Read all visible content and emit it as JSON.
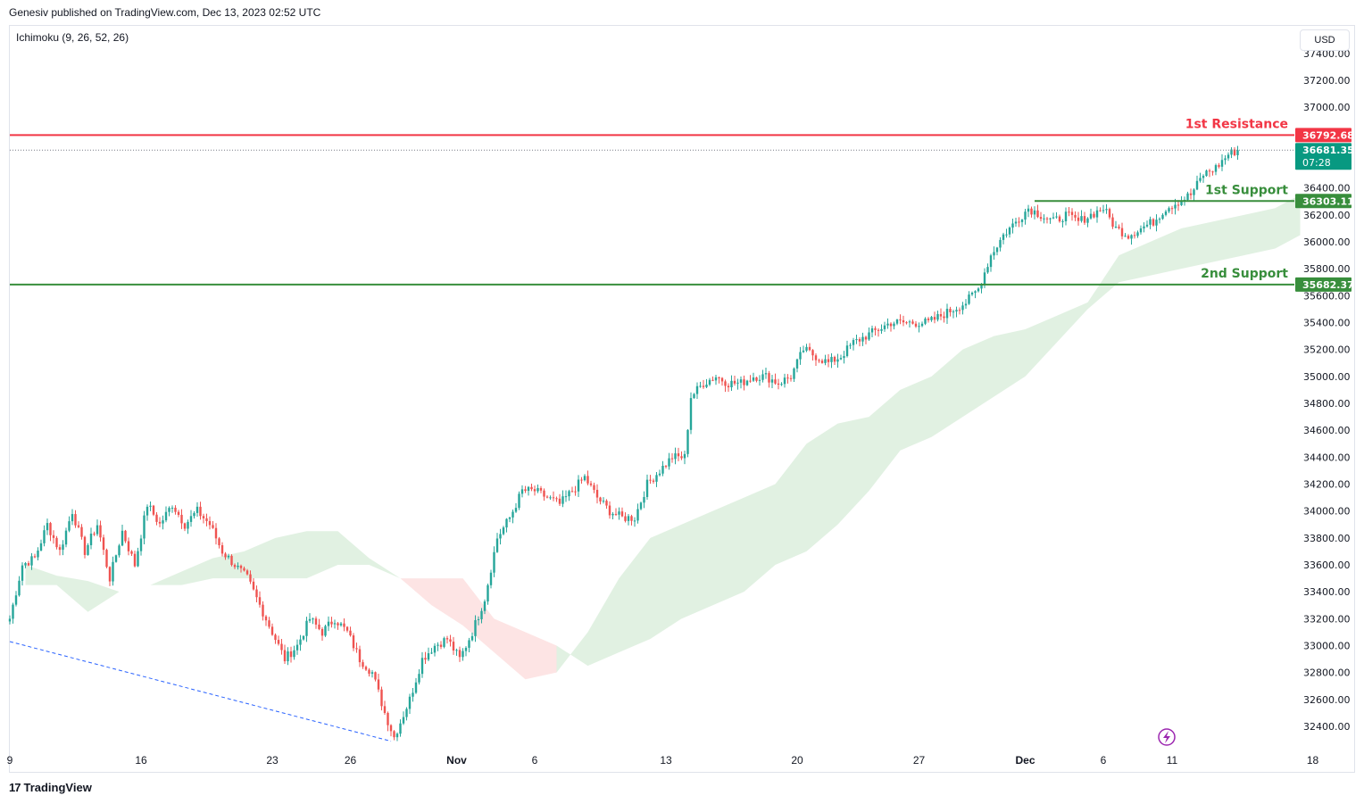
{
  "header": {
    "publisher": "Genesiv published on TradingView.com, Dec 13, 2023 02:52 UTC",
    "indicator": "Ichimoku (9, 26, 52, 26)",
    "currency": "USD"
  },
  "footer": {
    "brand": "TradingView",
    "brand_mark": "17"
  },
  "colors": {
    "up": "#26a69a",
    "down": "#ef5350",
    "resistance": "#f23645",
    "support": "#388e3c",
    "cloud_bull": "#e1f1e2",
    "cloud_bear": "#fde4e4",
    "trend": "#2962ff",
    "current": "#089981"
  },
  "chart_data": {
    "type": "candlestick",
    "title": "",
    "ylim": [
      32200,
      37500
    ],
    "y_ticks": [
      32400,
      32600,
      32800,
      33000,
      33200,
      33400,
      33600,
      33800,
      34000,
      34200,
      34400,
      34600,
      34800,
      35000,
      35200,
      35400,
      35600,
      35800,
      36000,
      36200,
      36400,
      36600,
      36800,
      37000,
      37200,
      37400
    ],
    "y_tick_labels": [
      "32400.00",
      "32600.00",
      "32800.00",
      "33000.00",
      "33200.00",
      "33400.00",
      "33600.00",
      "33800.00",
      "34000.00",
      "34200.00",
      "34400.00",
      "34600.00",
      "34800.00",
      "35000.00",
      "35200.00",
      "35400.00",
      "35600.00",
      "35800.00",
      "36000.00",
      "36200.00",
      "36400.00",
      "36600.00",
      "36800.00",
      "37000.00",
      "37200.00",
      "37400.00"
    ],
    "x_ticks": [
      {
        "label": "9",
        "bar": 0
      },
      {
        "label": "16",
        "bar": 42
      },
      {
        "label": "23",
        "bar": 84
      },
      {
        "label": "26",
        "bar": 109
      },
      {
        "label": "Nov",
        "bar": 143
      },
      {
        "label": "6",
        "bar": 168
      },
      {
        "label": "13",
        "bar": 210
      },
      {
        "label": "20",
        "bar": 252
      },
      {
        "label": "27",
        "bar": 291
      },
      {
        "label": "Dec",
        "bar": 325
      },
      {
        "label": "6",
        "bar": 350
      },
      {
        "label": "11",
        "bar": 372
      },
      {
        "label": "18",
        "bar": 417
      }
    ],
    "x_tick_bold": [
      "Nov",
      "Dec"
    ],
    "close_anchors": [
      [
        0,
        33200
      ],
      [
        4,
        33600
      ],
      [
        8,
        33650
      ],
      [
        12,
        33900
      ],
      [
        16,
        33700
      ],
      [
        20,
        34000
      ],
      [
        24,
        33700
      ],
      [
        28,
        33900
      ],
      [
        32,
        33500
      ],
      [
        36,
        33850
      ],
      [
        40,
        33600
      ],
      [
        44,
        34050
      ],
      [
        48,
        33900
      ],
      [
        52,
        34050
      ],
      [
        56,
        33900
      ],
      [
        60,
        34000
      ],
      [
        64,
        33900
      ],
      [
        68,
        33700
      ],
      [
        72,
        33600
      ],
      [
        76,
        33500
      ],
      [
        80,
        33300
      ],
      [
        84,
        33100
      ],
      [
        88,
        32900
      ],
      [
        92,
        33000
      ],
      [
        96,
        33200
      ],
      [
        100,
        33100
      ],
      [
        104,
        33200
      ],
      [
        108,
        33100
      ],
      [
        112,
        32900
      ],
      [
        116,
        32800
      ],
      [
        120,
        32500
      ],
      [
        123,
        32320
      ],
      [
        128,
        32600
      ],
      [
        132,
        32900
      ],
      [
        136,
        33000
      ],
      [
        140,
        33050
      ],
      [
        144,
        32900
      ],
      [
        148,
        33100
      ],
      [
        152,
        33350
      ],
      [
        156,
        33800
      ],
      [
        160,
        33950
      ],
      [
        164,
        34150
      ],
      [
        168,
        34150
      ],
      [
        172,
        34100
      ],
      [
        176,
        34050
      ],
      [
        180,
        34150
      ],
      [
        184,
        34250
      ],
      [
        188,
        34100
      ],
      [
        192,
        34000
      ],
      [
        196,
        33950
      ],
      [
        200,
        33950
      ],
      [
        204,
        34200
      ],
      [
        208,
        34300
      ],
      [
        212,
        34400
      ],
      [
        216,
        34400
      ],
      [
        218,
        34850
      ],
      [
        222,
        34950
      ],
      [
        226,
        35000
      ],
      [
        230,
        34950
      ],
      [
        234,
        34950
      ],
      [
        238,
        35000
      ],
      [
        242,
        35000
      ],
      [
        246,
        34950
      ],
      [
        250,
        35000
      ],
      [
        254,
        35200
      ],
      [
        258,
        35150
      ],
      [
        262,
        35100
      ],
      [
        266,
        35150
      ],
      [
        270,
        35250
      ],
      [
        274,
        35300
      ],
      [
        278,
        35350
      ],
      [
        282,
        35400
      ],
      [
        286,
        35400
      ],
      [
        290,
        35400
      ],
      [
        294,
        35400
      ],
      [
        298,
        35450
      ],
      [
        302,
        35500
      ],
      [
        306,
        35550
      ],
      [
        310,
        35650
      ],
      [
        314,
        35900
      ],
      [
        318,
        36050
      ],
      [
        322,
        36150
      ],
      [
        326,
        36250
      ],
      [
        330,
        36200
      ],
      [
        334,
        36150
      ],
      [
        338,
        36200
      ],
      [
        342,
        36150
      ],
      [
        346,
        36200
      ],
      [
        350,
        36250
      ],
      [
        354,
        36100
      ],
      [
        358,
        36050
      ],
      [
        362,
        36100
      ],
      [
        366,
        36150
      ],
      [
        370,
        36250
      ],
      [
        374,
        36300
      ],
      [
        378,
        36350
      ],
      [
        382,
        36500
      ],
      [
        386,
        36550
      ],
      [
        390,
        36650
      ],
      [
        393,
        36681.35
      ]
    ],
    "ichimoku_cloud": [
      {
        "bar": 5,
        "a": 33600,
        "b": 33450
      },
      {
        "bar": 15,
        "a": 33520,
        "b": 33450
      },
      {
        "bar": 25,
        "a": 33480,
        "b": 33250
      },
      {
        "bar": 35,
        "a": 33400,
        "b": 33400
      },
      {
        "bar": 45,
        "a": 33450,
        "b": 33450
      },
      {
        "bar": 55,
        "a": 33550,
        "b": 33450
      },
      {
        "bar": 65,
        "a": 33650,
        "b": 33500
      },
      {
        "bar": 75,
        "a": 33700,
        "b": 33500
      },
      {
        "bar": 85,
        "a": 33800,
        "b": 33500
      },
      {
        "bar": 95,
        "a": 33850,
        "b": 33500
      },
      {
        "bar": 105,
        "a": 33850,
        "b": 33600
      },
      {
        "bar": 115,
        "a": 33650,
        "b": 33600
      },
      {
        "bar": 125,
        "a": 33500,
        "b": 33500
      },
      {
        "bar": 135,
        "a": 33300,
        "b": 33500
      },
      {
        "bar": 145,
        "a": 33150,
        "b": 33500
      },
      {
        "bar": 155,
        "a": 32950,
        "b": 33200
      },
      {
        "bar": 165,
        "a": 32750,
        "b": 33100
      },
      {
        "bar": 175,
        "a": 32800,
        "b": 33000
      },
      {
        "bar": 185,
        "a": 33100,
        "b": 32850
      },
      {
        "bar": 195,
        "a": 33500,
        "b": 32950
      },
      {
        "bar": 205,
        "a": 33800,
        "b": 33050
      },
      {
        "bar": 215,
        "a": 33900,
        "b": 33200
      },
      {
        "bar": 225,
        "a": 34000,
        "b": 33300
      },
      {
        "bar": 235,
        "a": 34100,
        "b": 33400
      },
      {
        "bar": 245,
        "a": 34200,
        "b": 33600
      },
      {
        "bar": 255,
        "a": 34500,
        "b": 33700
      },
      {
        "bar": 265,
        "a": 34650,
        "b": 33900
      },
      {
        "bar": 275,
        "a": 34700,
        "b": 34150
      },
      {
        "bar": 285,
        "a": 34900,
        "b": 34450
      },
      {
        "bar": 295,
        "a": 35000,
        "b": 34550
      },
      {
        "bar": 305,
        "a": 35200,
        "b": 34700
      },
      {
        "bar": 315,
        "a": 35300,
        "b": 34850
      },
      {
        "bar": 325,
        "a": 35350,
        "b": 35000
      },
      {
        "bar": 335,
        "a": 35450,
        "b": 35250
      },
      {
        "bar": 345,
        "a": 35550,
        "b": 35500
      },
      {
        "bar": 355,
        "a": 35900,
        "b": 35700
      },
      {
        "bar": 365,
        "a": 36000,
        "b": 35750
      },
      {
        "bar": 375,
        "a": 36100,
        "b": 35800
      },
      {
        "bar": 385,
        "a": 36150,
        "b": 35850
      },
      {
        "bar": 395,
        "a": 36200,
        "b": 35900
      },
      {
        "bar": 405,
        "a": 36250,
        "b": 35950
      },
      {
        "bar": 413,
        "a": 36350,
        "b": 36050
      }
    ],
    "trendline": {
      "from": {
        "bar": 0,
        "price": 33030
      },
      "to": {
        "bar": 122,
        "price": 32290
      }
    },
    "levels": [
      {
        "name": "1st Resistance",
        "price": 36792.68,
        "label": "36792.68",
        "kind": "resistance"
      },
      {
        "name": "1st Support",
        "price": 36303.11,
        "label": "36303.11",
        "kind": "support",
        "from_bar": 328
      },
      {
        "name": "2nd Support",
        "price": 35682.37,
        "label": "35682.37",
        "kind": "support"
      }
    ],
    "current_price": {
      "price": 36681.35,
      "label": "36681.35",
      "countdown": "07:28"
    },
    "events_icon": "lightning-icon"
  }
}
